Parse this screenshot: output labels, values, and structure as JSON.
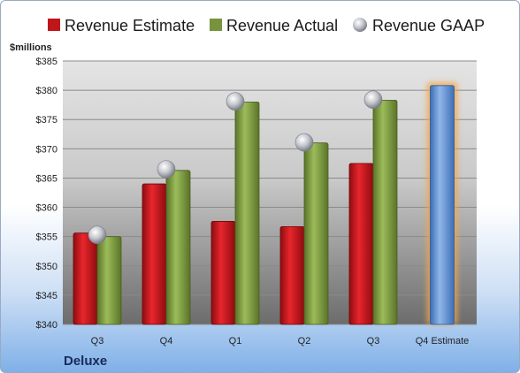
{
  "company": "Deluxe",
  "chart_data": {
    "type": "bar",
    "ylabel": "$millions",
    "ylim": [
      340,
      385
    ],
    "ytick_step": 5,
    "ytick_prefix": "$",
    "categories": [
      "Q3",
      "Q4",
      "Q1",
      "Q2",
      "Q3",
      "Q4 Estimate"
    ],
    "series": [
      {
        "name": "Revenue Estimate",
        "kind": "bar",
        "color": "#c0151b",
        "values": [
          355.6,
          364.0,
          357.6,
          356.7,
          367.5,
          null
        ]
      },
      {
        "name": "Revenue Actual",
        "kind": "bar",
        "color": "#77933c",
        "values": [
          355.0,
          366.3,
          378.0,
          371.0,
          378.3,
          null
        ]
      },
      {
        "name": "Revenue GAAP",
        "kind": "marker",
        "color": "#b8bcc4",
        "values": [
          355.3,
          366.5,
          378.1,
          371.1,
          378.4,
          null
        ]
      }
    ],
    "forecast": {
      "category": "Q4 Estimate",
      "value": 380.8,
      "color": "#6a9ad6",
      "glow": "#f5a64a"
    },
    "grid": true,
    "legend_position": "top"
  }
}
